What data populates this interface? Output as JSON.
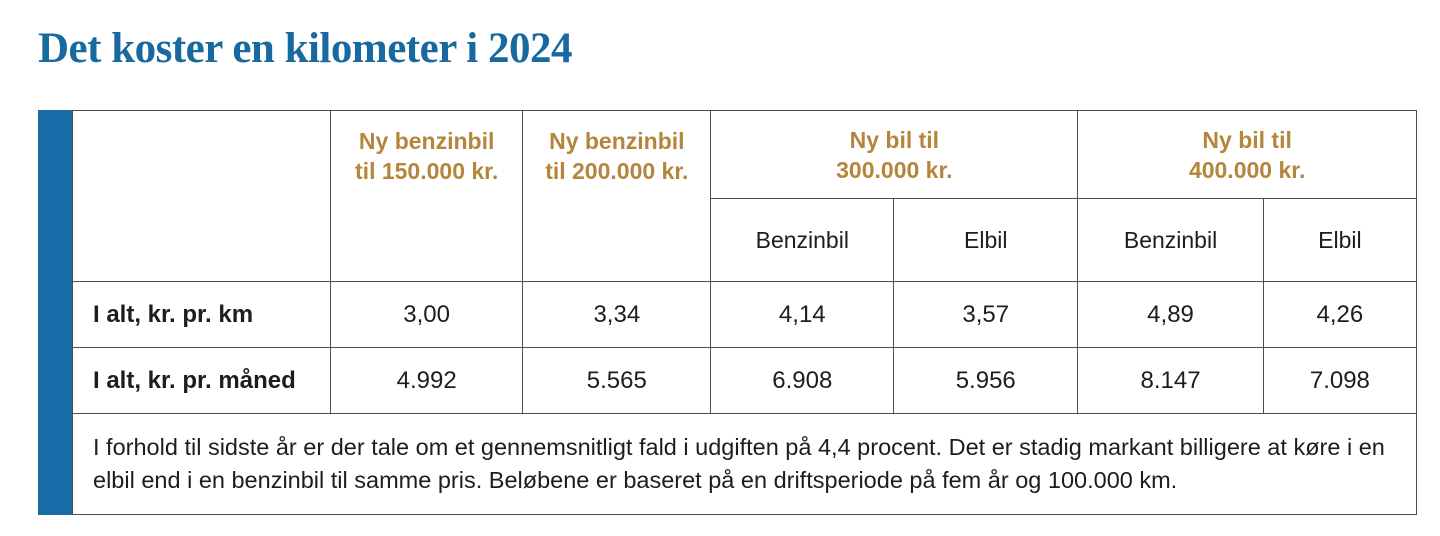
{
  "page": {
    "title": "Det koster en kilometer i 2024"
  },
  "colors": {
    "title_blue": "#17699f",
    "accent_bar_blue": "#1a6ca8",
    "header_gold": "#b5853c",
    "border_gray": "#4d4d4d",
    "text_dark": "#1d1d1b",
    "background": "#ffffff"
  },
  "table": {
    "group_headers": {
      "benzin150": "Ny benzinbil\ntil 150.000 kr.",
      "benzin200": "Ny benzinbil\ntil 200.000 kr.",
      "bil300": "Ny bil til\n300.000 kr.",
      "bil400": "Ny bil til\n400.000 kr."
    },
    "sub_headers": [
      "Benzinbil",
      "Elbil",
      "Benzinbil",
      "Elbil"
    ],
    "rows": [
      {
        "label": "I alt, kr. pr. km",
        "values": [
          "3,00",
          "3,34",
          "4,14",
          "3,57",
          "4,89",
          "4,26"
        ]
      },
      {
        "label": "I alt, kr. pr. måned",
        "values": [
          "4.992",
          "5.565",
          "6.908",
          "5.956",
          "8.147",
          "7.098"
        ]
      }
    ],
    "note": "I forhold til sidste år er der tale om et gennemsnitligt fald i udgiften på 4,4 procent. Det er stadig markant billigere at køre i en elbil end i en benzinbil til samme pris. Beløbene er baseret på en driftsperiode på fem år og 100.000 km."
  },
  "chart_data": {
    "type": "table",
    "title": "Det koster en kilometer i 2024",
    "columns": [
      "Ny benzinbil til 150.000 kr.",
      "Ny benzinbil til 200.000 kr.",
      "Ny bil til 300.000 kr. – Benzinbil",
      "Ny bil til 300.000 kr. – Elbil",
      "Ny bil til 400.000 kr. – Benzinbil",
      "Ny bil til 400.000 kr. – Elbil"
    ],
    "rows": [
      {
        "label": "I alt, kr. pr. km",
        "values": [
          3.0,
          3.34,
          4.14,
          3.57,
          4.89,
          4.26
        ]
      },
      {
        "label": "I alt, kr. pr. måned",
        "values": [
          4992,
          5565,
          6908,
          5956,
          8147,
          7098
        ]
      }
    ],
    "note": "I forhold til sidste år er der tale om et gennemsnitligt fald i udgiften på 4,4 procent. Det er stadig markant billigere at køre i en elbil end i en benzinbil til samme pris. Beløbene er baseret på en driftsperiode på fem år og 100.000 km."
  }
}
